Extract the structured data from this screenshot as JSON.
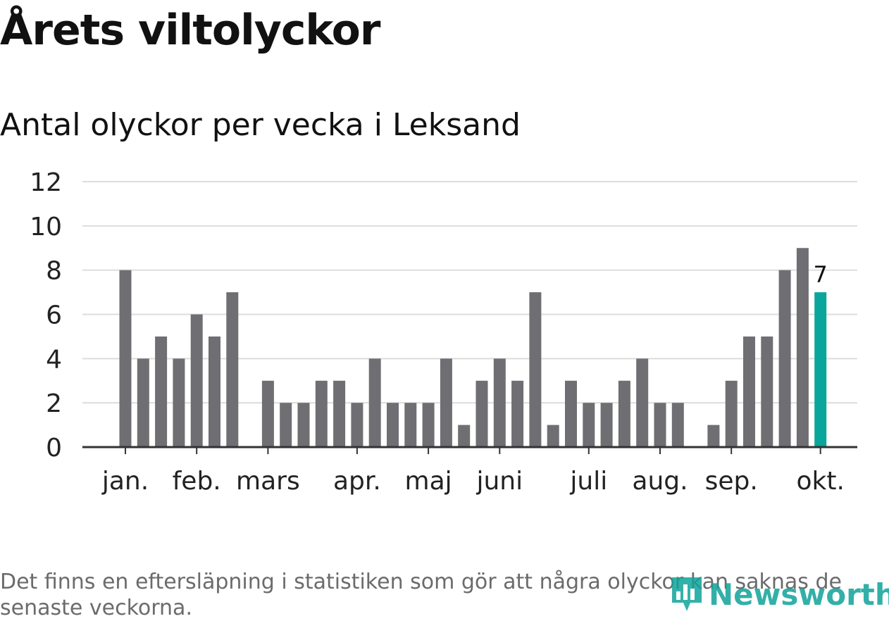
{
  "title": "Årets viltolyckor",
  "subtitle": "Antal olyckor per vecka i Leksand",
  "footnote": "Det finns en eftersläpning i statistiken som gör att några olyckor kan saknas de senaste veckorna.",
  "brand": {
    "name": "Newsworthy",
    "color": "#0fa39a"
  },
  "colors": {
    "bar": "#6f6e73",
    "highlight": "#0aa69b",
    "grid": "#dddddd",
    "axis": "#333333",
    "text": "#222222"
  },
  "chart_data": {
    "type": "bar",
    "title": "Antal olyckor per vecka i Leksand",
    "xlabel": "",
    "ylabel": "",
    "ylim": [
      0,
      12
    ],
    "yticks": [
      "0",
      "2",
      "4",
      "6",
      "8",
      "10",
      "12"
    ],
    "grid": true,
    "week_values": [
      8,
      4,
      5,
      4,
      6,
      5,
      7,
      0,
      3,
      2,
      2,
      3,
      3,
      2,
      4,
      2,
      2,
      2,
      4,
      1,
      3,
      4,
      3,
      7,
      1,
      3,
      2,
      2,
      3,
      4,
      2,
      2,
      0,
      1,
      3,
      5,
      5,
      8,
      9,
      7
    ],
    "highlight_index": 39,
    "highlight_label": "7",
    "month_labels": [
      {
        "label": "jan.",
        "week_index": 0
      },
      {
        "label": "feb.",
        "week_index": 4
      },
      {
        "label": "mars",
        "week_index": 8
      },
      {
        "label": "apr.",
        "week_index": 13
      },
      {
        "label": "maj",
        "week_index": 17
      },
      {
        "label": "juni",
        "week_index": 21
      },
      {
        "label": "juli",
        "week_index": 26
      },
      {
        "label": "aug.",
        "week_index": 30
      },
      {
        "label": "sep.",
        "week_index": 34
      },
      {
        "label": "okt.",
        "week_index": 39
      }
    ]
  }
}
